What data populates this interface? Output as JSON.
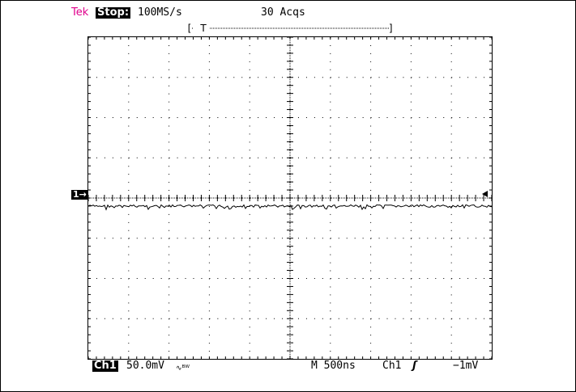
{
  "header": {
    "brand": "Tek",
    "run_status": "Stop:",
    "sample_rate": "100MS/s",
    "acquisitions": "30 Acqs",
    "trigger_position_label": "T"
  },
  "display": {
    "divisions_x": 10,
    "divisions_y": 8,
    "trace_level_div": -0.2,
    "trace_color": "#000000",
    "grid_color": "#000000"
  },
  "markers": {
    "channel_marker": "1→"
  },
  "footer": {
    "channel": "Ch1",
    "volts_per_div": "50.0mV",
    "bw_limit_icon": "∿ᴮᵂ",
    "timebase": "M  500ns",
    "trigger_source": "Ch1",
    "trigger_edge_icon": "rising-edge-icon",
    "trigger_edge_glyph": "ʃ",
    "trigger_level": "−1mV"
  }
}
